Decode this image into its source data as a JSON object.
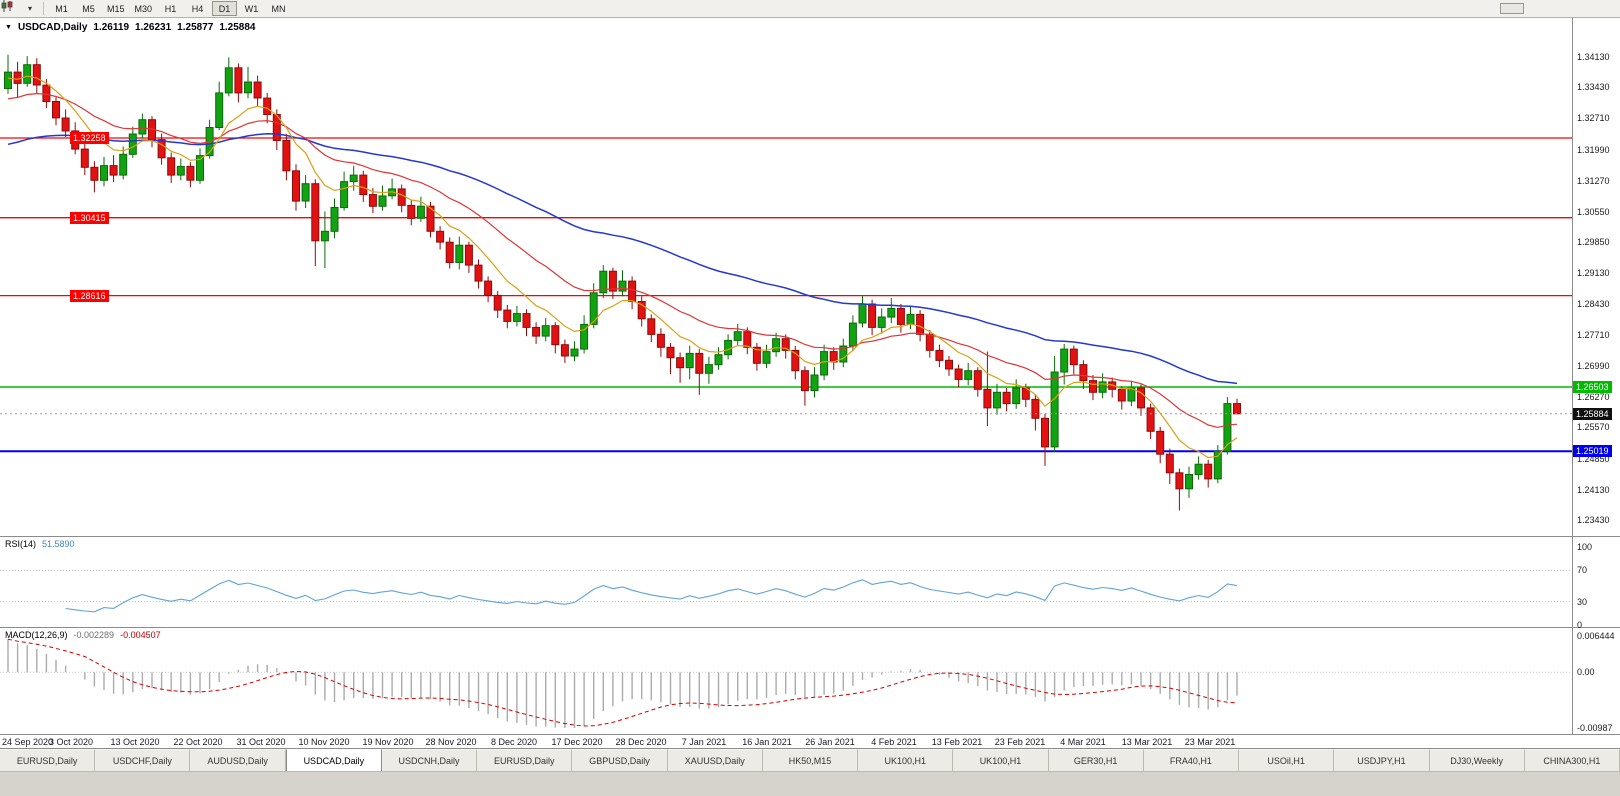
{
  "toolbar": {
    "timeframes": [
      "M1",
      "M5",
      "M15",
      "M30",
      "H1",
      "H4",
      "D1",
      "W1",
      "MN"
    ],
    "active_timeframe": "D1"
  },
  "chart": {
    "header": {
      "symbol": "USDCAD,Daily",
      "open": "1.26119",
      "high": "1.26231",
      "low": "1.25877",
      "close": "1.25884"
    }
  },
  "rsi": {
    "label": "RSI(14)",
    "value": "51.5890",
    "axis_labels": [
      "100",
      "70",
      "30",
      "0"
    ]
  },
  "macd": {
    "label": "MACD(12,26,9)",
    "main": "-0.002289",
    "signal": "-0.004507",
    "axis_labels": [
      "0.006444",
      "0.00",
      "-0.00987"
    ]
  },
  "chart_data": {
    "type": "candlestick",
    "title": "USDCAD,Daily",
    "y_range": {
      "max": 1.3503,
      "min": 1.2306
    },
    "y_axis_labels": [
      "1.34130",
      "1.33430",
      "1.32710",
      "1.31990",
      "1.31270",
      "1.30550",
      "1.29850",
      "1.29130",
      "1.28430",
      "1.27710",
      "1.26990",
      "1.26270",
      "1.25570",
      "1.24850",
      "1.24130",
      "1.23430"
    ],
    "x_labels": [
      "24 Sep 2020",
      "3 Oct 2020",
      "13 Oct 2020",
      "22 Oct 2020",
      "31 Oct 2020",
      "10 Nov 2020",
      "19 Nov 2020",
      "28 Nov 2020",
      "8 Dec 2020",
      "17 Dec 2020",
      "28 Dec 2020",
      "7 Jan 2021",
      "16 Jan 2021",
      "26 Jan 2021",
      "4 Feb 2021",
      "13 Feb 2021",
      "23 Feb 2021",
      "4 Mar 2021",
      "13 Mar 2021",
      "23 Mar 2021"
    ],
    "current_price": 1.25884,
    "last_candle_ohlc": {
      "open": 1.26119,
      "high": 1.26231,
      "low": 1.25877,
      "close": 1.25884
    },
    "candles": [
      [
        1.334,
        1.3418,
        1.3328,
        1.3378
      ],
      [
        1.3378,
        1.3402,
        1.3318,
        1.3352
      ],
      [
        1.3352,
        1.3415,
        1.3344,
        1.3395
      ],
      [
        1.3395,
        1.341,
        1.3328,
        1.3348
      ],
      [
        1.3348,
        1.3362,
        1.3295,
        1.331
      ],
      [
        1.331,
        1.332,
        1.3255,
        1.3272
      ],
      [
        1.3272,
        1.3292,
        1.3228,
        1.3242
      ],
      [
        1.3242,
        1.3262,
        1.3188,
        1.32
      ],
      [
        1.32,
        1.3216,
        1.314,
        1.3158
      ],
      [
        1.3158,
        1.3172,
        1.31,
        1.3128
      ],
      [
        1.3128,
        1.3182,
        1.3114,
        1.3162
      ],
      [
        1.3162,
        1.3186,
        1.3124,
        1.314
      ],
      [
        1.314,
        1.3206,
        1.313,
        1.3188
      ],
      [
        1.3188,
        1.3252,
        1.318,
        1.3235
      ],
      [
        1.3235,
        1.3282,
        1.3224,
        1.3268
      ],
      [
        1.3268,
        1.3276,
        1.3204,
        1.3222
      ],
      [
        1.3222,
        1.3236,
        1.3164,
        1.318
      ],
      [
        1.318,
        1.3192,
        1.3122,
        1.314
      ],
      [
        1.314,
        1.3178,
        1.3128,
        1.316
      ],
      [
        1.316,
        1.317,
        1.3112,
        1.3128
      ],
      [
        1.3128,
        1.3202,
        1.312,
        1.3185
      ],
      [
        1.3185,
        1.3268,
        1.3178,
        1.325
      ],
      [
        1.325,
        1.3356,
        1.3244,
        1.333
      ],
      [
        1.333,
        1.3412,
        1.3322,
        1.3388
      ],
      [
        1.3388,
        1.3398,
        1.3308,
        1.333
      ],
      [
        1.333,
        1.339,
        1.3318,
        1.3355
      ],
      [
        1.3355,
        1.337,
        1.3298,
        1.3318
      ],
      [
        1.3318,
        1.333,
        1.326,
        1.328
      ],
      [
        1.328,
        1.3292,
        1.3198,
        1.322
      ],
      [
        1.322,
        1.3235,
        1.3128,
        1.315
      ],
      [
        1.315,
        1.3165,
        1.3058,
        1.308
      ],
      [
        1.308,
        1.314,
        1.3064,
        1.312
      ],
      [
        1.312,
        1.313,
        1.293,
        1.2988
      ],
      [
        1.2988,
        1.3056,
        1.2925,
        1.301
      ],
      [
        1.301,
        1.3086,
        1.2994,
        1.3065
      ],
      [
        1.3065,
        1.3148,
        1.3058,
        1.3125
      ],
      [
        1.3125,
        1.3162,
        1.3104,
        1.314
      ],
      [
        1.314,
        1.315,
        1.3078,
        1.3095
      ],
      [
        1.3095,
        1.311,
        1.3052,
        1.3068
      ],
      [
        1.3068,
        1.3116,
        1.3058,
        1.3092
      ],
      [
        1.3092,
        1.3132,
        1.3084,
        1.3108
      ],
      [
        1.3108,
        1.3118,
        1.3054,
        1.307
      ],
      [
        1.307,
        1.3082,
        1.3024,
        1.304
      ],
      [
        1.304,
        1.309,
        1.3032,
        1.3068
      ],
      [
        1.3068,
        1.3078,
        1.2996,
        1.301
      ],
      [
        1.301,
        1.3022,
        1.2968,
        1.2985
      ],
      [
        1.2985,
        1.2996,
        1.2924,
        1.2938
      ],
      [
        1.2938,
        1.2998,
        1.2922,
        1.2978
      ],
      [
        1.2978,
        1.2986,
        1.2914,
        1.2932
      ],
      [
        1.2932,
        1.2945,
        1.2878,
        1.2895
      ],
      [
        1.2895,
        1.2906,
        1.2846,
        1.2862
      ],
      [
        1.2862,
        1.2872,
        1.281,
        1.2828
      ],
      [
        1.2828,
        1.284,
        1.2786,
        1.2802
      ],
      [
        1.2802,
        1.2838,
        1.279,
        1.282
      ],
      [
        1.282,
        1.283,
        1.2768,
        1.2788
      ],
      [
        1.2788,
        1.28,
        1.275,
        1.2768
      ],
      [
        1.2768,
        1.281,
        1.2756,
        1.2792
      ],
      [
        1.2792,
        1.28,
        1.2728,
        1.2748
      ],
      [
        1.2748,
        1.276,
        1.2706,
        1.2722
      ],
      [
        1.2722,
        1.2756,
        1.271,
        1.2738
      ],
      [
        1.2738,
        1.2816,
        1.2728,
        1.2795
      ],
      [
        1.2795,
        1.289,
        1.2786,
        1.2868
      ],
      [
        1.2868,
        1.2932,
        1.2856,
        1.2918
      ],
      [
        1.2918,
        1.2926,
        1.2854,
        1.2872
      ],
      [
        1.2872,
        1.292,
        1.286,
        1.2895
      ],
      [
        1.2895,
        1.2906,
        1.283,
        1.2848
      ],
      [
        1.2848,
        1.286,
        1.279,
        1.2808
      ],
      [
        1.2808,
        1.2818,
        1.2754,
        1.2772
      ],
      [
        1.2772,
        1.2786,
        1.272,
        1.2742
      ],
      [
        1.2742,
        1.2752,
        1.268,
        1.2718
      ],
      [
        1.2718,
        1.273,
        1.266,
        1.2695
      ],
      [
        1.2695,
        1.2746,
        1.2668,
        1.2728
      ],
      [
        1.2728,
        1.2738,
        1.2632,
        1.2682
      ],
      [
        1.2682,
        1.272,
        1.2658,
        1.2702
      ],
      [
        1.2702,
        1.2742,
        1.269,
        1.2725
      ],
      [
        1.2725,
        1.2772,
        1.2714,
        1.2758
      ],
      [
        1.2758,
        1.2796,
        1.2746,
        1.2778
      ],
      [
        1.2778,
        1.2788,
        1.2726,
        1.2742
      ],
      [
        1.2742,
        1.2752,
        1.2688,
        1.2705
      ],
      [
        1.2705,
        1.2748,
        1.2694,
        1.2732
      ],
      [
        1.2732,
        1.2776,
        1.272,
        1.2762
      ],
      [
        1.2762,
        1.2772,
        1.2716,
        1.2735
      ],
      [
        1.2735,
        1.2745,
        1.2668,
        1.2688
      ],
      [
        1.2688,
        1.2698,
        1.2607,
        1.2642
      ],
      [
        1.2642,
        1.2696,
        1.2626,
        1.2678
      ],
      [
        1.2678,
        1.2748,
        1.2666,
        1.2732
      ],
      [
        1.2732,
        1.2742,
        1.269,
        1.2708
      ],
      [
        1.2708,
        1.2762,
        1.2696,
        1.2745
      ],
      [
        1.2745,
        1.2816,
        1.2736,
        1.2798
      ],
      [
        1.2798,
        1.286,
        1.2788,
        1.2842
      ],
      [
        1.2842,
        1.2852,
        1.277,
        1.2788
      ],
      [
        1.2788,
        1.2832,
        1.2774,
        1.2812
      ],
      [
        1.2812,
        1.2856,
        1.2798,
        1.2832
      ],
      [
        1.2832,
        1.2842,
        1.2776,
        1.2795
      ],
      [
        1.2795,
        1.2838,
        1.2784,
        1.2818
      ],
      [
        1.2818,
        1.2828,
        1.2756,
        1.2772
      ],
      [
        1.2772,
        1.2782,
        1.2718,
        1.2735
      ],
      [
        1.2735,
        1.2748,
        1.2696,
        1.2712
      ],
      [
        1.2712,
        1.2722,
        1.2676,
        1.2692
      ],
      [
        1.2692,
        1.2702,
        1.265,
        1.2668
      ],
      [
        1.2668,
        1.2706,
        1.2654,
        1.2688
      ],
      [
        1.2688,
        1.2696,
        1.2628,
        1.2645
      ],
      [
        1.2645,
        1.2732,
        1.256,
        1.2602
      ],
      [
        1.2602,
        1.2658,
        1.2586,
        1.2638
      ],
      [
        1.2638,
        1.2648,
        1.2594,
        1.2612
      ],
      [
        1.2612,
        1.2668,
        1.26,
        1.2648
      ],
      [
        1.2648,
        1.2658,
        1.2604,
        1.2622
      ],
      [
        1.2622,
        1.2632,
        1.255,
        1.2578
      ],
      [
        1.2578,
        1.2588,
        1.2468,
        1.2512
      ],
      [
        1.2512,
        1.2722,
        1.25,
        1.2685
      ],
      [
        1.2685,
        1.275,
        1.2656,
        1.2738
      ],
      [
        1.2738,
        1.2746,
        1.268,
        1.2702
      ],
      [
        1.2702,
        1.2712,
        1.2646,
        1.2665
      ],
      [
        1.2665,
        1.2678,
        1.262,
        1.2638
      ],
      [
        1.2638,
        1.2682,
        1.2624,
        1.2662
      ],
      [
        1.2662,
        1.2672,
        1.2626,
        1.2645
      ],
      [
        1.2645,
        1.2652,
        1.2598,
        1.2618
      ],
      [
        1.2618,
        1.2664,
        1.2606,
        1.2648
      ],
      [
        1.2648,
        1.2656,
        1.2584,
        1.2602
      ],
      [
        1.2602,
        1.2612,
        1.253,
        1.2548
      ],
      [
        1.2548,
        1.2558,
        1.2474,
        1.2495
      ],
      [
        1.2495,
        1.2508,
        1.2426,
        1.2452
      ],
      [
        1.2452,
        1.2462,
        1.2365,
        1.2415
      ],
      [
        1.2415,
        1.2466,
        1.2394,
        1.2448
      ],
      [
        1.2448,
        1.249,
        1.2436,
        1.2472
      ],
      [
        1.2472,
        1.2482,
        1.2418,
        1.2438
      ],
      [
        1.2438,
        1.2516,
        1.2428,
        1.2502
      ],
      [
        1.2502,
        1.2627,
        1.2494,
        1.2612
      ],
      [
        1.26119,
        1.26231,
        1.25877,
        1.25884
      ]
    ],
    "moving_averages": [
      {
        "name": "ma-fast-orange",
        "period": 8,
        "seed": 1.336,
        "color": "#dba117",
        "width": 1.2
      },
      {
        "name": "ma-medium-red",
        "period": 21,
        "seed": 1.331,
        "color": "#e03535",
        "width": 1.2
      },
      {
        "name": "ma-slow-blue",
        "period": 55,
        "seed": 1.3205,
        "color": "#2438cf",
        "width": 1.5
      }
    ],
    "horizontal_levels": [
      {
        "name": "resistance-line-1",
        "label": "1.32258",
        "price": 1.32258,
        "color": "#ff0000",
        "width": 1.3,
        "badge_side": "left"
      },
      {
        "name": "resistance-line-2",
        "label": "1.30415",
        "price": 1.30415,
        "color": "#ff0000",
        "width": 1.3,
        "badge_side": "left"
      },
      {
        "name": "resistance-line-3",
        "label": "1.28616",
        "price": 1.28616,
        "color": "#ff0000",
        "width": 1.3,
        "badge_side": "left"
      },
      {
        "name": "support-line-green",
        "label": "1.26503",
        "price": 1.26503,
        "color": "#00bb00",
        "width": 1.4,
        "badge_side": "right"
      },
      {
        "name": "support-line-blue",
        "label": "1.25019",
        "price": 1.25019,
        "color": "#0000ee",
        "width": 2,
        "badge_side": "right"
      }
    ],
    "indicators": [
      {
        "type": "rsi",
        "period": 14,
        "value": 51.589,
        "levels": [
          100,
          70,
          30,
          0
        ],
        "color": "#5ea4d9"
      },
      {
        "type": "macd",
        "fast": 12,
        "slow": 26,
        "signal": 9,
        "main_value": -0.002289,
        "signal_value": -0.004507,
        "axis": [
          0.006444,
          0,
          -0.00987
        ],
        "histogram_color": "#ababab",
        "signal_color": "#d40000",
        "seeds": {
          "ema12": 1.3395,
          "ema26": 1.333
        }
      }
    ]
  },
  "tabs": [
    {
      "label": "EURUSD,Daily",
      "active": false
    },
    {
      "label": "USDCHF,Daily",
      "active": false
    },
    {
      "label": "AUDUSD,Daily",
      "active": false
    },
    {
      "label": "USDCAD,Daily",
      "active": true
    },
    {
      "label": "USDCNH,Daily",
      "active": false
    },
    {
      "label": "EURUSD,Daily",
      "active": false
    },
    {
      "label": "GBPUSD,Daily",
      "active": false
    },
    {
      "label": "XAUUSD,Daily",
      "active": false
    },
    {
      "label": "HK50,M15",
      "active": false
    },
    {
      "label": "UK100,H1",
      "active": false
    },
    {
      "label": "UK100,H1",
      "active": false
    },
    {
      "label": "GER30,H1",
      "active": false
    },
    {
      "label": "FRA40,H1",
      "active": false
    },
    {
      "label": "USOil,H1",
      "active": false
    },
    {
      "label": "USDJPY,H1",
      "active": false
    },
    {
      "label": "DJ30,Weekly",
      "active": false
    },
    {
      "label": "CHINA300,H1",
      "active": false
    }
  ],
  "colors": {
    "bull": "#12a212",
    "bull_border": "#0b6b0b",
    "bear": "#e31212",
    "bear_border": "#8f0a0a",
    "background": "#ffffff",
    "axis_text": "#1a1a1a",
    "current_price_badge": "#101010"
  }
}
